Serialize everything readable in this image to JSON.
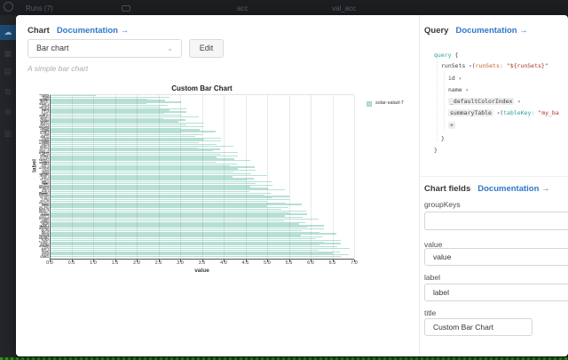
{
  "backdrop": {
    "runs_label": "Runs (7)",
    "panel_titles": [
      "acc",
      "val_acc"
    ]
  },
  "modal": {
    "chart_panel": {
      "header": "Chart",
      "doc_link": "Documentation →",
      "chart_type_selected": "Bar chart",
      "edit_button": "Edit",
      "description": "A simple bar chart"
    },
    "query_panel": {
      "header": "Query",
      "doc_link": "Documentation →",
      "code_lines": [
        {
          "indent": 0,
          "segments": [
            {
              "t": "query",
              "c": "kw"
            },
            {
              "t": " {",
              "c": "plain"
            }
          ]
        },
        {
          "indent": 1,
          "segments": [
            {
              "t": "runSets ",
              "c": "plain"
            },
            {
              "t": "▾",
              "c": "caret"
            },
            {
              "t": "(",
              "c": "plain"
            },
            {
              "t": "runSets:",
              "c": "param-o"
            },
            {
              "t": " ",
              "c": "plain"
            },
            {
              "t": "\"${runSets}\"",
              "c": "str"
            },
            {
              "t": " ",
              "c": "plain"
            }
          ]
        },
        {
          "indent": 2,
          "segments": [
            {
              "t": "id ",
              "c": "plain"
            },
            {
              "t": "▾",
              "c": "caret"
            }
          ]
        },
        {
          "indent": 2,
          "segments": [
            {
              "t": "name ",
              "c": "plain"
            },
            {
              "t": "▾",
              "c": "caret"
            }
          ]
        },
        {
          "indent": 2,
          "segments": [
            {
              "t": "_defaultColorIndex",
              "c": "chip"
            },
            {
              "t": " ",
              "c": "plain"
            },
            {
              "t": "▾",
              "c": "caret"
            }
          ]
        },
        {
          "indent": 2,
          "segments": [
            {
              "t": "summaryTable",
              "c": "chip"
            },
            {
              "t": " ",
              "c": "plain"
            },
            {
              "t": "▾",
              "c": "caret"
            },
            {
              "t": "(",
              "c": "plain"
            },
            {
              "t": "tableKey:",
              "c": "param-t"
            },
            {
              "t": " ",
              "c": "plain"
            },
            {
              "t": "\"my_ba",
              "c": "str"
            }
          ]
        },
        {
          "indent": 2,
          "segments": [
            {
              "t": "+",
              "c": "chip"
            }
          ]
        },
        {
          "indent": 1,
          "segments": [
            {
              "t": "}",
              "c": "plain"
            }
          ]
        },
        {
          "indent": 0,
          "segments": [
            {
              "t": "}",
              "c": "plain"
            }
          ]
        }
      ]
    },
    "fields_panel": {
      "header": "Chart fields",
      "doc_link": "Documentation →",
      "fields": [
        {
          "label": "groupKeys",
          "value": ""
        },
        {
          "label": "value",
          "value": "value"
        },
        {
          "label": "label",
          "value": "label"
        },
        {
          "label": "title",
          "value": "Custom Bar Chart"
        }
      ]
    }
  },
  "chart_data": {
    "type": "bar",
    "orientation": "horizontal",
    "title": "Custom Bar Chart",
    "xlabel": "value",
    "ylabel": "label",
    "xlim": [
      0,
      7
    ],
    "xticks": [
      0,
      0.5,
      1,
      1.5,
      2,
      2.5,
      3,
      3.5,
      4,
      4.5,
      5,
      5.5,
      6,
      6.5,
      7
    ],
    "grid": true,
    "legend_position": "right",
    "legend": [
      {
        "label": "solar-salad-7",
        "color": "#b7e0d5"
      }
    ],
    "n_bars": 100,
    "ytick_labels_legible": false,
    "values": [
      1.07,
      2.75,
      2.24,
      2.66,
      3.03,
      2.23,
      2.72,
      2.56,
      3.14,
      2.75,
      3.15,
      2.64,
      3.05,
      3.43,
      2.62,
      3.12,
      2.96,
      3.53,
      3.15,
      3.54,
      3.03,
      3.45,
      3.82,
      3.02,
      3.51,
      3.35,
      3.93,
      3.54,
      3.94,
      3.43,
      3.84,
      4.22,
      3.41,
      3.91,
      3.75,
      4.32,
      3.94,
      4.33,
      3.83,
      4.24,
      4.61,
      3.81,
      4.3,
      4.14,
      4.72,
      4.33,
      4.73,
      4.22,
      4.63,
      5.01,
      4.2,
      4.7,
      4.54,
      5.11,
      4.73,
      5.12,
      4.62,
      5.03,
      5.4,
      4.6,
      5.09,
      4.94,
      5.51,
      5.12,
      5.52,
      5.01,
      5.42,
      5.8,
      4.99,
      5.49,
      5.33,
      5.9,
      5.52,
      5.91,
      5.41,
      5.82,
      6.19,
      5.39,
      5.88,
      5.73,
      6.3,
      5.91,
      6.31,
      5.8,
      6.21,
      6.59,
      5.78,
      6.28,
      6.12,
      6.69,
      6.31,
      6.7,
      6.2,
      6.61,
      6.9,
      6.18,
      6.67,
      6.52,
      6.88,
      6.7
    ]
  },
  "colors": {
    "link_blue": "#2e78c7",
    "bar_teal": "#b7e0d5",
    "code_keyword": "#2aa198",
    "code_string": "#a93226",
    "code_param_orange": "#c0652b",
    "code_caret_purple": "#7b6fae",
    "sidebar_active_blue": "#1d4a73",
    "green_strip": "#2f8f1f"
  }
}
